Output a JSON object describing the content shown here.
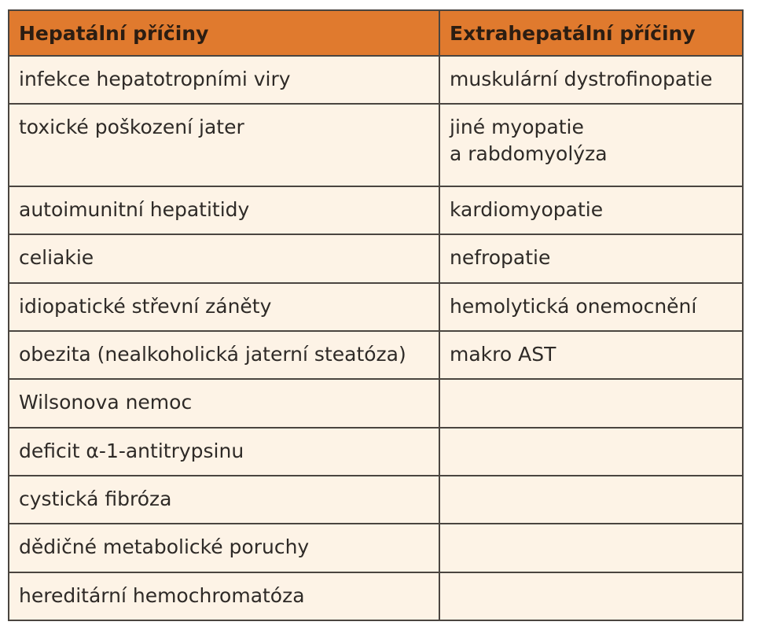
{
  "table": {
    "header": [
      "Hepatální příčiny",
      "Extrahepatální příčiny"
    ],
    "rows": [
      [
        "infekce hepatotropními viry",
        "muskulární dystrofinopatie"
      ],
      [
        "toxické poškození jater",
        "jiné myopatie\na rabdomyolýza"
      ],
      [
        "autoimunitní hepatitidy",
        "kardiomyopatie"
      ],
      [
        "celiakie",
        "nefropatie"
      ],
      [
        "idiopatické střevní záněty",
        "hemolytická onemocnění"
      ],
      [
        "obezita (nealkoholická jaterní steatóza)",
        "makro AST"
      ],
      [
        "Wilsonova nemoc",
        null
      ],
      [
        "deficit α-1-antitrypsinu",
        null
      ],
      [
        "cystická fibróza",
        null
      ],
      [
        "dědičné metabolické poruchy",
        null
      ],
      [
        "hereditární hemochromatóza",
        null
      ]
    ]
  }
}
